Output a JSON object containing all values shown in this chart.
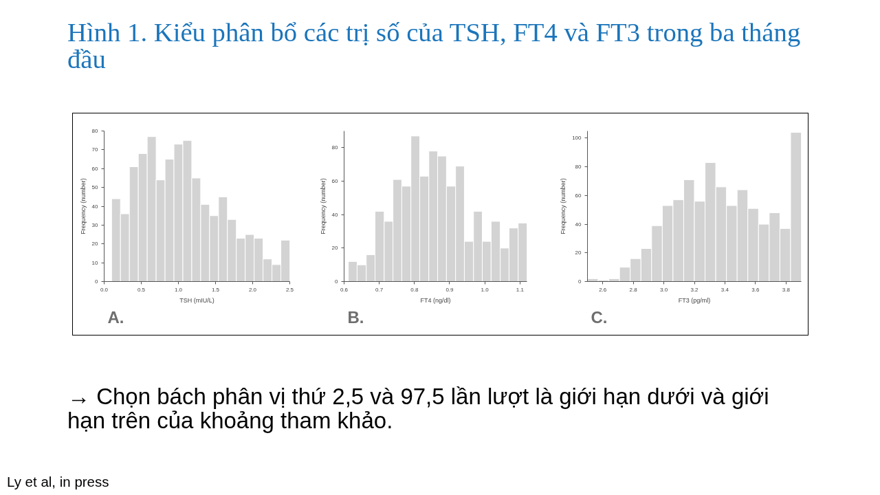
{
  "chart_data": [
    {
      "type": "histogram",
      "title": "Hình 1. Kiểu phân bổ các trị số của TSH, FT4 và FT3 trong ba tháng đầu",
      "subtitle": "A.",
      "xlabel": "TSH (mIU/L)",
      "ylabel": "Frequency (number)",
      "color": "#d3d3d3",
      "bins": [
        0.1,
        0.22,
        0.34,
        0.46,
        0.58,
        0.7,
        0.82,
        0.94,
        1.06,
        1.18,
        1.3,
        1.42,
        1.54,
        1.66,
        1.78,
        1.9,
        2.02,
        2.14,
        2.26,
        2.38,
        2.5
      ],
      "values": [
        44,
        36,
        61,
        68,
        77,
        54,
        65,
        73,
        75,
        55,
        41,
        35,
        45,
        33,
        23,
        25,
        23,
        12,
        9,
        22
      ],
      "xlim": [
        0,
        2.5
      ],
      "ylim": [
        0,
        80
      ],
      "xticks": [
        {
          "value": 0,
          "label": "0.0"
        },
        0.5,
        {
          "value": 1,
          "label": "1.0"
        },
        1.5,
        {
          "value": 2,
          "label": "2.0"
        },
        2.5
      ],
      "yticks": [
        0,
        10,
        20,
        30,
        40,
        50,
        60,
        70,
        80
      ],
      "annotations": [
        "→ Chọn bách phân vị thứ 2,5 và 97,5 lần lượt là giới hạn dưới và giới hạn trên của khoảng tham khảo.",
        "Ly et al, in press"
      ]
    },
    {
      "type": "histogram",
      "subtitle": "B.",
      "xlabel": "FT4 (ng/dl)",
      "ylabel": "Frequency (number)",
      "color": "#d3d3d3",
      "bins": [
        0.612,
        0.637,
        0.663,
        0.688,
        0.714,
        0.739,
        0.764,
        0.79,
        0.815,
        0.841,
        0.866,
        0.891,
        0.917,
        0.942,
        0.968,
        0.993,
        1.018,
        1.044,
        1.069,
        1.095,
        1.12
      ],
      "values": [
        12,
        10,
        16,
        42,
        36,
        61,
        57,
        87,
        63,
        78,
        75,
        57,
        69,
        24,
        42,
        24,
        36,
        20,
        32,
        35
      ],
      "xlim": [
        0.6,
        1.12
      ],
      "ylim": [
        0,
        90
      ],
      "xticks": [
        0.6,
        0.7,
        0.8,
        0.9,
        {
          "value": 1,
          "label": "1.0"
        },
        1.1
      ],
      "yticks": [
        0,
        20,
        40,
        60,
        80
      ]
    },
    {
      "type": "histogram",
      "subtitle": "C.",
      "xlabel": "FT3 (pg/ml)",
      "ylabel": "Frequency (number)",
      "color": "#d3d3d3",
      "bins": [
        2.5,
        2.57,
        2.64,
        2.71,
        2.78,
        2.85,
        2.92,
        2.99,
        3.06,
        3.13,
        3.2,
        3.27,
        3.34,
        3.41,
        3.48,
        3.55,
        3.62,
        3.69,
        3.76,
        3.83,
        3.9
      ],
      "values": [
        2,
        1,
        2,
        10,
        16,
        23,
        39,
        53,
        57,
        71,
        56,
        83,
        66,
        53,
        64,
        51,
        40,
        48,
        37,
        104
      ],
      "xlim": [
        2.5,
        3.9
      ],
      "ylim": [
        0,
        105
      ],
      "xticks": [
        2.6,
        2.8,
        {
          "value": 3,
          "label": "3.0"
        },
        3.2,
        3.4,
        3.6,
        3.8
      ],
      "yticks": [
        0,
        20,
        40,
        60,
        80,
        100
      ]
    }
  ]
}
